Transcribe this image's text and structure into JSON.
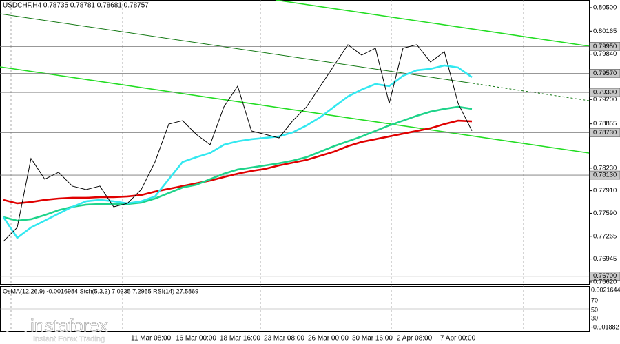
{
  "chart_data": {
    "type": "line",
    "title": "USDCHF,H4  0.78735 0.78781 0.78681 0.78757",
    "indicator_title": "OsMA(12,26,9) -0.0016984  Stch(5,3,3) 7.0335 7.2955  RSI(14) 27.5869",
    "watermark": "instaforex",
    "watermark_sub": "Instant Forex Trading",
    "time_labels": [
      "11 Mar 08:00",
      "16 Mar 00:00",
      "18 Mar 16:00",
      "23 Mar 08:00",
      "26 Mar 00:00",
      "30 Mar 16:00",
      "2 Apr 08:00",
      "7 Apr 00:00"
    ],
    "ylim": [
      0.7659,
      0.80607
    ],
    "yticks": [
      {
        "value": 0.805,
        "label": "0.80500"
      },
      {
        "value": 0.80165,
        "label": "0.80165"
      },
      {
        "value": 0.7984,
        "label": "0.79840"
      },
      {
        "value": 0.792,
        "label": "0.79200"
      },
      {
        "value": 0.78855,
        "label": "0.78855"
      },
      {
        "value": 0.7823,
        "label": "0.78230"
      },
      {
        "value": 0.7791,
        "label": "0.77910"
      },
      {
        "value": 0.7759,
        "label": "0.77590"
      },
      {
        "value": 0.77265,
        "label": "0.77265"
      },
      {
        "value": 0.76945,
        "label": "0.76945"
      },
      {
        "value": 0.7662,
        "label": "0.76620"
      }
    ],
    "levels": [
      {
        "value": 0.7995,
        "label": "0.79950"
      },
      {
        "value": 0.7957,
        "label": "0.79570"
      },
      {
        "value": 0.793,
        "label": "0.79300"
      },
      {
        "value": 0.7873,
        "label": "0.78730"
      },
      {
        "value": 0.7813,
        "label": "0.78130"
      },
      {
        "value": 0.767,
        "label": "0.76700"
      }
    ],
    "indicator_ticks": [
      "0.0021644",
      "70",
      "50",
      "30",
      "-0.001882"
    ],
    "series": [
      {
        "name": "price",
        "color": "#000000",
        "values": [
          0.77195,
          0.7739,
          0.78365,
          0.78072,
          0.7817,
          0.77975,
          0.77926,
          0.77975,
          0.77682,
          0.77731,
          0.77926,
          0.78316,
          0.78852,
          0.789,
          0.78706,
          0.7856,
          0.79096,
          0.79389,
          0.78755,
          0.78706,
          0.78657,
          0.789,
          0.79096,
          0.79389,
          0.79681,
          0.79974,
          0.79828,
          0.79925,
          0.79145,
          0.79925,
          0.79974,
          0.7973,
          0.79876,
          0.79145,
          0.78757
        ]
      },
      {
        "name": "ma-fast",
        "color": "#33e8f0",
        "values": [
          0.77536,
          0.77243,
          0.7739,
          0.77487,
          0.77585,
          0.77682,
          0.7776,
          0.7778,
          0.7776,
          0.77731,
          0.7776,
          0.77829,
          0.78072,
          0.78316,
          0.78384,
          0.78443,
          0.7856,
          0.78608,
          0.78638,
          0.78657,
          0.78677,
          0.78735,
          0.78833,
          0.7895,
          0.79096,
          0.79242,
          0.7934,
          0.79418,
          0.79389,
          0.79535,
          0.79613,
          0.79633,
          0.79681,
          0.79652,
          0.79515
        ]
      },
      {
        "name": "ma-mid",
        "color": "#1ed38a",
        "values": [
          0.77536,
          0.77487,
          0.77507,
          0.77565,
          0.77634,
          0.77682,
          0.77712,
          0.77721,
          0.77721,
          0.77721,
          0.77741,
          0.77799,
          0.77877,
          0.77955,
          0.77994,
          0.78072,
          0.7815,
          0.78209,
          0.78238,
          0.78267,
          0.78297,
          0.78335,
          0.78384,
          0.78462,
          0.7854,
          0.78608,
          0.78677,
          0.78755,
          0.78833,
          0.789,
          0.78969,
          0.79028,
          0.79067,
          0.79096,
          0.79067
        ]
      },
      {
        "name": "ma-slow",
        "color": "#e00000",
        "values": [
          0.7778,
          0.77731,
          0.7775,
          0.7778,
          0.77799,
          0.77809,
          0.77809,
          0.77819,
          0.77819,
          0.77829,
          0.77848,
          0.77897,
          0.77936,
          0.77975,
          0.78014,
          0.78053,
          0.78102,
          0.7815,
          0.78189,
          0.78219,
          0.78267,
          0.78306,
          0.78345,
          0.78404,
          0.78462,
          0.7854,
          0.78599,
          0.78638,
          0.78677,
          0.78716,
          0.78755,
          0.78794,
          0.78852,
          0.789,
          0.7889
        ]
      }
    ]
  }
}
